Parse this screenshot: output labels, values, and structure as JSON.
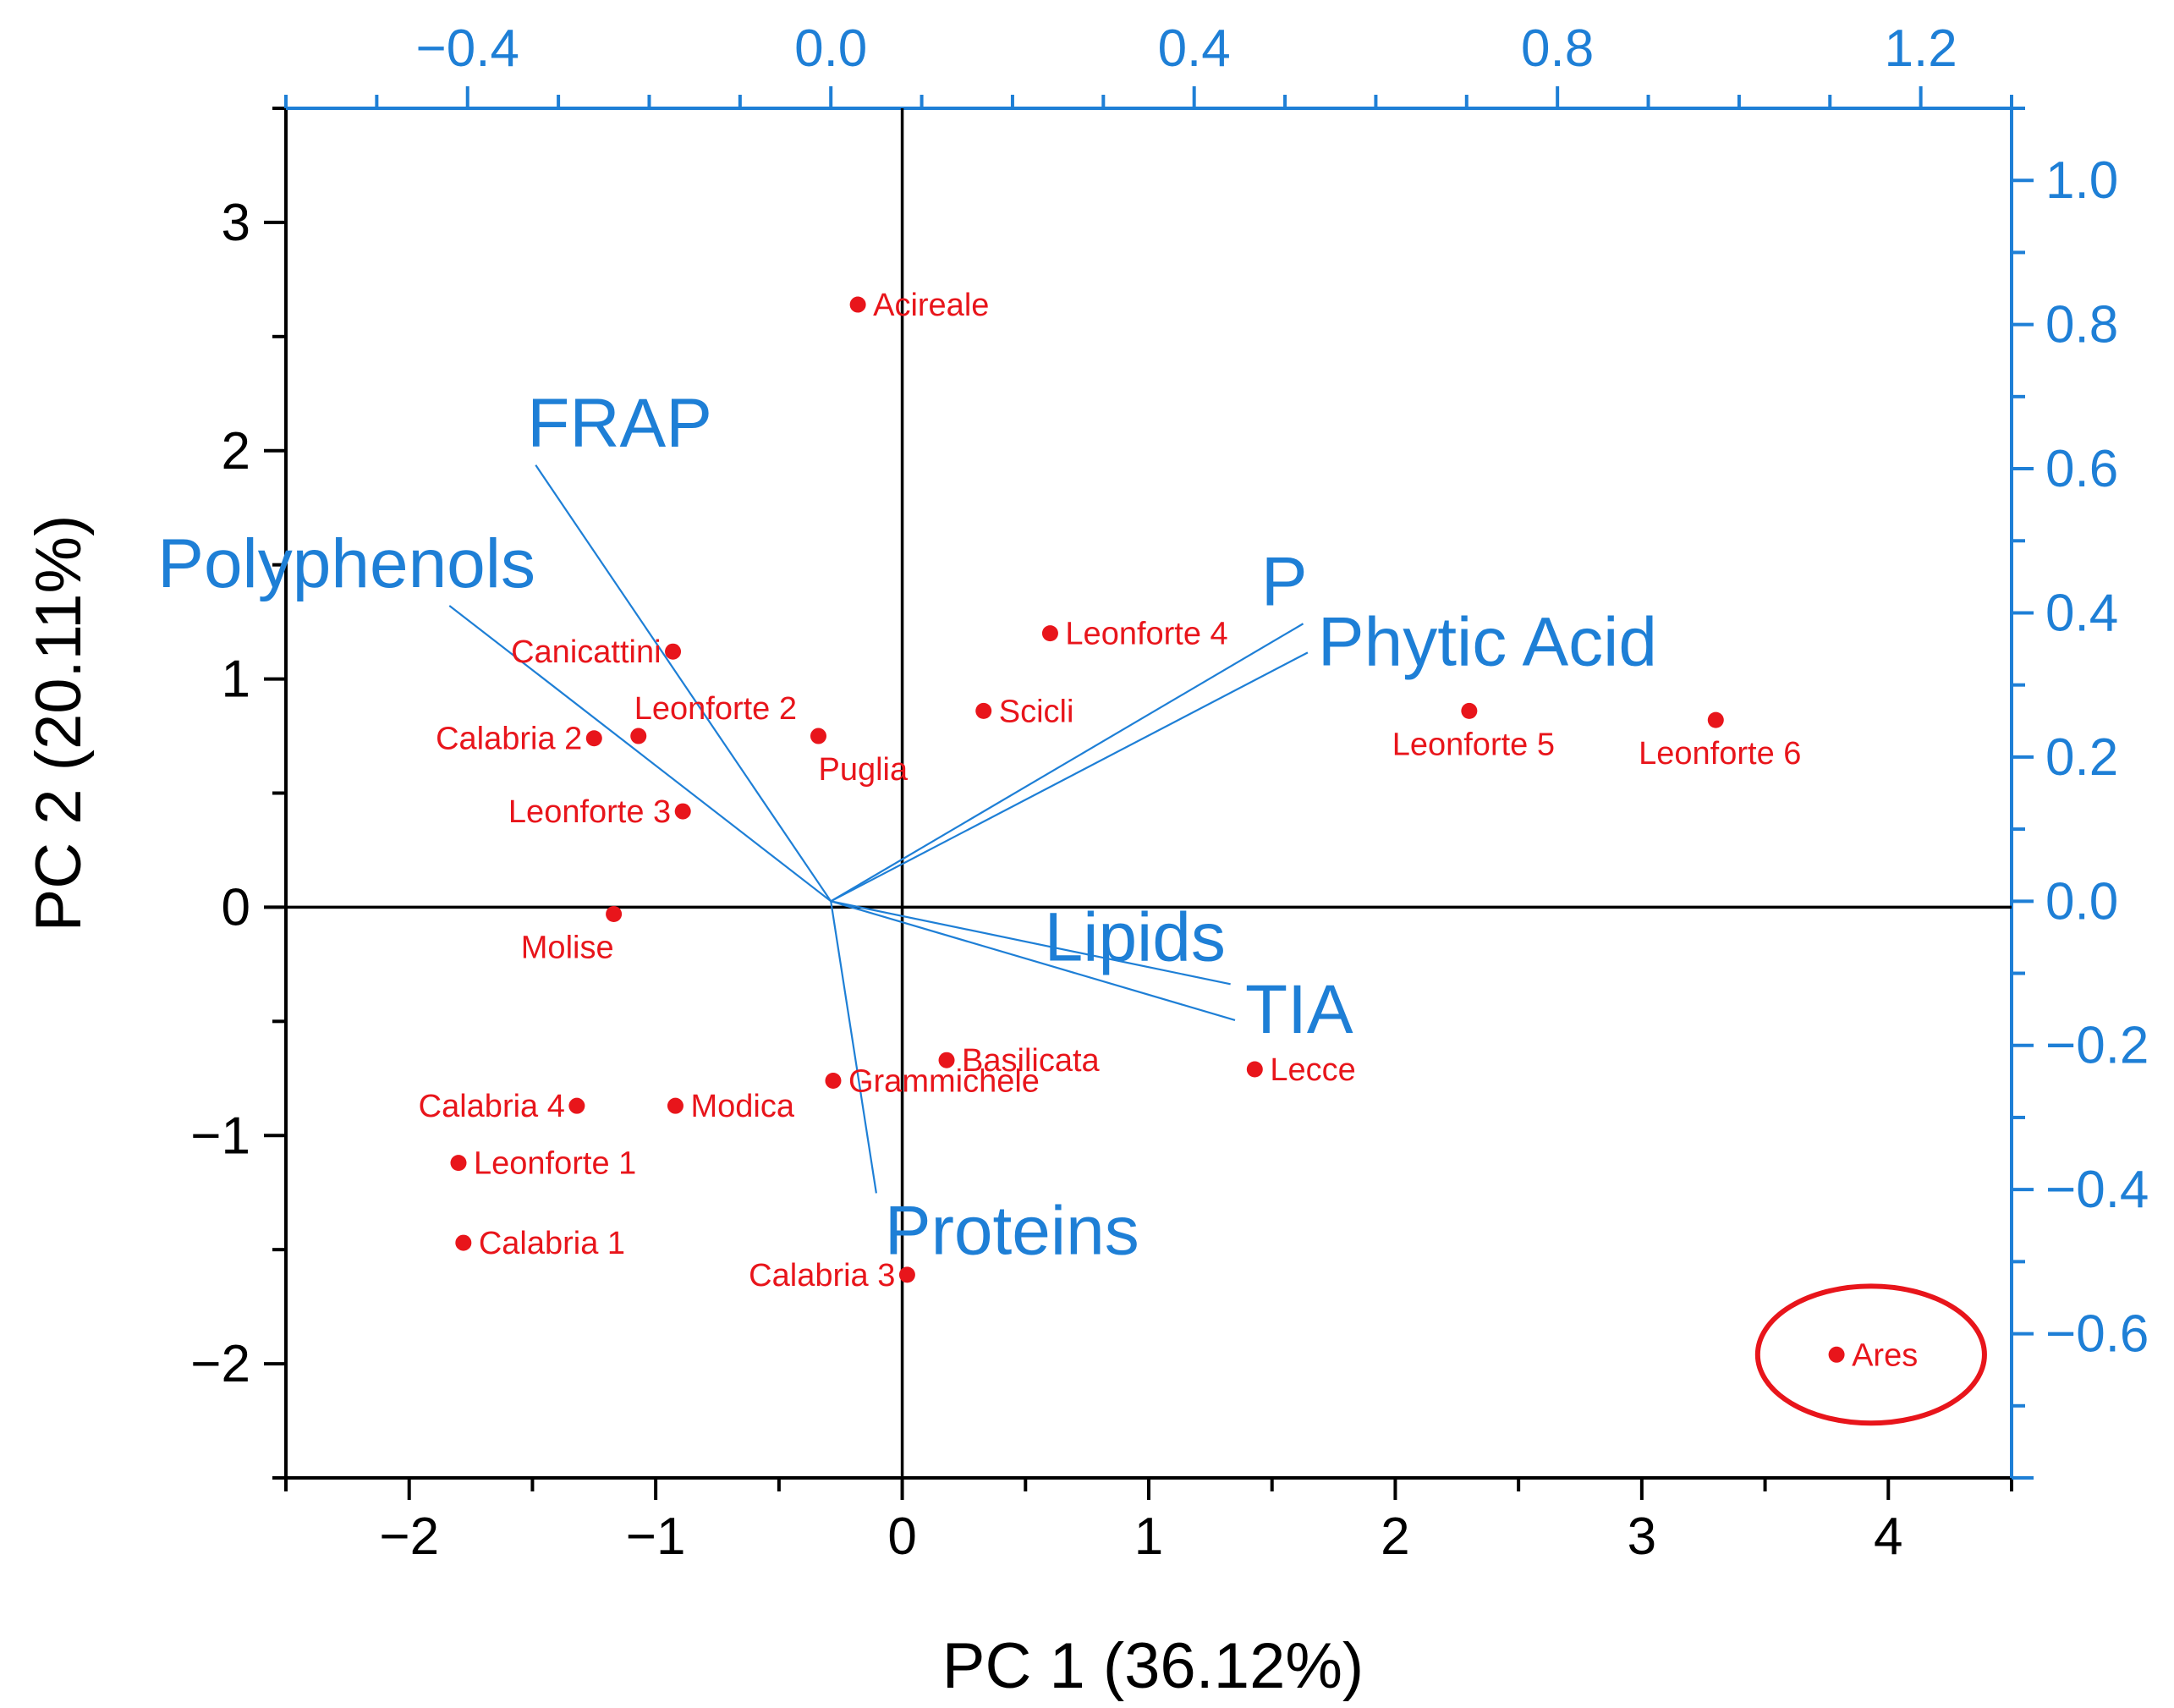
{
  "chart_data": {
    "type": "biplot",
    "colors": {
      "scores": "#e8151b",
      "loadings": "#1e7fd6",
      "axes": "#000000",
      "highlight": "#e8151b"
    },
    "xlabel": "PC 1 (36.12%)",
    "ylabel": "PC 2 (20.11%)",
    "xlim": [
      -2.5,
      4.5
    ],
    "ylim": [
      -2.5,
      3.5
    ],
    "loading_xlim": [
      -0.6,
      1.3
    ],
    "loading_ylim": [
      -0.8,
      1.1
    ],
    "x_ticks": [
      {
        "v": -2,
        "label": "−2"
      },
      {
        "v": -1,
        "label": "−1"
      },
      {
        "v": 0,
        "label": "0"
      },
      {
        "v": 1,
        "label": "1"
      },
      {
        "v": 2,
        "label": "2"
      },
      {
        "v": 3,
        "label": "3"
      },
      {
        "v": 4,
        "label": "4"
      }
    ],
    "y_ticks": [
      {
        "v": -2,
        "label": "−2"
      },
      {
        "v": -1,
        "label": "−1"
      },
      {
        "v": 0,
        "label": "0"
      },
      {
        "v": 1,
        "label": "1"
      },
      {
        "v": 2,
        "label": "2"
      },
      {
        "v": 3,
        "label": "3"
      }
    ],
    "top_ticks": [
      {
        "v": -0.4,
        "label": "−0.4"
      },
      {
        "v": 0.0,
        "label": "0.0"
      },
      {
        "v": 0.4,
        "label": "0.4"
      },
      {
        "v": 0.8,
        "label": "0.8"
      },
      {
        "v": 1.2,
        "label": "1.2"
      }
    ],
    "right_ticks": [
      {
        "v": 1.0,
        "label": "1.0"
      },
      {
        "v": 0.8,
        "label": "0.8"
      },
      {
        "v": 0.6,
        "label": "0.6"
      },
      {
        "v": 0.4,
        "label": "0.4"
      },
      {
        "v": 0.2,
        "label": "0.2"
      },
      {
        "v": 0.0,
        "label": "0.0"
      },
      {
        "v": -0.2,
        "label": "−0.2"
      },
      {
        "v": -0.4,
        "label": "−0.4"
      },
      {
        "v": -0.6,
        "label": "−0.6"
      }
    ],
    "scores": [
      {
        "name": "Acireale",
        "x": -0.18,
        "y": 2.64,
        "anchor": "right"
      },
      {
        "name": "Canicattini",
        "x": -0.93,
        "y": 1.12,
        "anchor": "left"
      },
      {
        "name": "Leonforte 4",
        "x": 0.6,
        "y": 1.2,
        "anchor": "right"
      },
      {
        "name": "Leonforte 2",
        "x": -1.07,
        "y": 0.75,
        "anchor": "above-right"
      },
      {
        "name": "Calabria 2",
        "x": -1.25,
        "y": 0.74,
        "anchor": "left"
      },
      {
        "name": "Puglia",
        "x": -0.34,
        "y": 0.75,
        "anchor": "below-right"
      },
      {
        "name": "Scicli",
        "x": 0.33,
        "y": 0.86,
        "anchor": "right"
      },
      {
        "name": "Leonforte 5",
        "x": 2.3,
        "y": 0.86,
        "anchor": "below-center"
      },
      {
        "name": "Leonforte 6",
        "x": 3.3,
        "y": 0.82,
        "anchor": "below-center"
      },
      {
        "name": "Leonforte 3",
        "x": -0.89,
        "y": 0.42,
        "anchor": "left"
      },
      {
        "name": "Molise",
        "x": -1.17,
        "y": -0.03,
        "anchor": "below-left"
      },
      {
        "name": "Basilicata",
        "x": 0.18,
        "y": -0.67,
        "anchor": "right"
      },
      {
        "name": "Lecce",
        "x": 1.43,
        "y": -0.71,
        "anchor": "right"
      },
      {
        "name": "Grammichele",
        "x": -0.28,
        "y": -0.76,
        "anchor": "right"
      },
      {
        "name": "Calabria 4",
        "x": -1.32,
        "y": -0.87,
        "anchor": "left"
      },
      {
        "name": "Modica",
        "x": -0.92,
        "y": -0.87,
        "anchor": "right"
      },
      {
        "name": "Leonforte 1",
        "x": -1.8,
        "y": -1.12,
        "anchor": "right"
      },
      {
        "name": "Calabria 1",
        "x": -1.78,
        "y": -1.47,
        "anchor": "right"
      },
      {
        "name": "Calabria 3",
        "x": 0.02,
        "y": -1.61,
        "anchor": "left"
      },
      {
        "name": "Ares",
        "x": 3.79,
        "y": -1.96,
        "anchor": "right"
      }
    ],
    "loadings": [
      {
        "name": "FRAP",
        "x": -0.325,
        "y": 0.605,
        "label_anchor": "above-left"
      },
      {
        "name": "Polyphenols",
        "x": -0.42,
        "y": 0.41,
        "label_anchor": "above-left"
      },
      {
        "name": "P",
        "x": 0.52,
        "y": 0.385,
        "label_anchor": "above-right"
      },
      {
        "name": "Phytic Acid",
        "x": 0.525,
        "y": 0.345,
        "label_anchor": "right"
      },
      {
        "name": "Lipids",
        "x": 0.44,
        "y": -0.115,
        "label_anchor": "above-left"
      },
      {
        "name": "TIA",
        "x": 0.445,
        "y": -0.165,
        "label_anchor": "right"
      },
      {
        "name": "Proteins",
        "x": 0.05,
        "y": -0.405,
        "label_anchor": "below-right"
      }
    ],
    "highlight_ellipse": {
      "point": "Ares",
      "cx": 3.93,
      "cy": -1.96,
      "rx": 0.46,
      "ry": 0.3
    }
  }
}
